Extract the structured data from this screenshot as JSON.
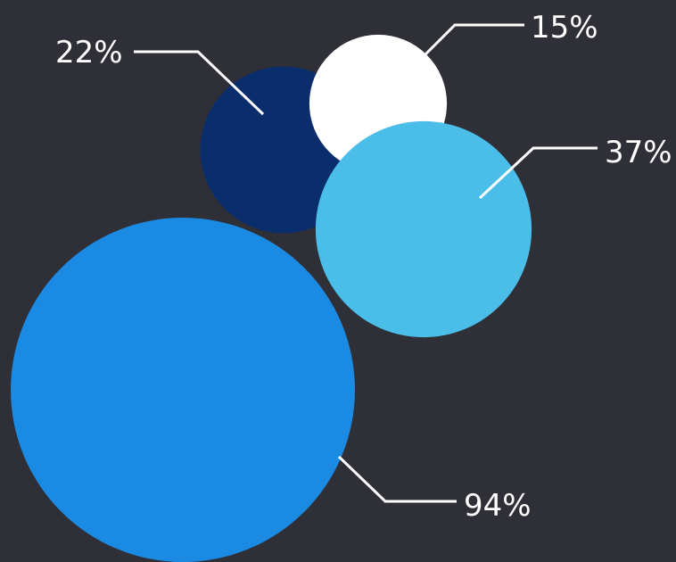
{
  "chart_data": {
    "type": "bubble",
    "background": "#2f2f38",
    "series": [
      {
        "label": "22%",
        "value": 22,
        "color": "#0a2d6c"
      },
      {
        "label": "15%",
        "value": 15,
        "color": "#ffffff"
      },
      {
        "label": "37%",
        "value": 37,
        "color": "#4bbde9"
      },
      {
        "label": "94%",
        "value": 94,
        "color": "#1b8ae3"
      }
    ],
    "grid": false,
    "legend": "none"
  }
}
